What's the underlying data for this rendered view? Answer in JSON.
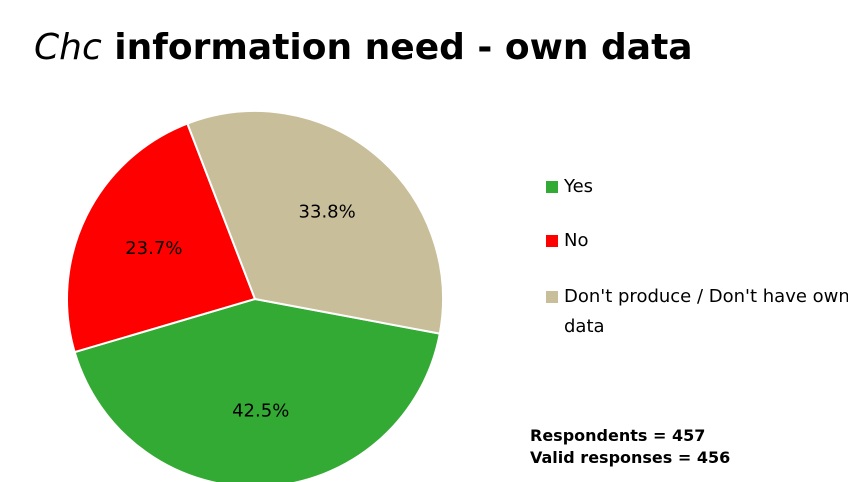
{
  "title": {
    "italic_part": "Chc",
    "rest": " information need - own data"
  },
  "chart_data": {
    "type": "pie",
    "categories": [
      "Yes",
      "No",
      "Don't produce / Don't have own data"
    ],
    "values": [
      42.5,
      23.7,
      33.8
    ],
    "labels": [
      "42.5%",
      "23.7%",
      "33.8%"
    ],
    "colors": [
      "#33AA33",
      "#FF0000",
      "#C8BE9A"
    ],
    "legend_position": "right"
  },
  "notes": {
    "respondents": "Respondents = 457",
    "valid": "Valid responses = 456"
  }
}
